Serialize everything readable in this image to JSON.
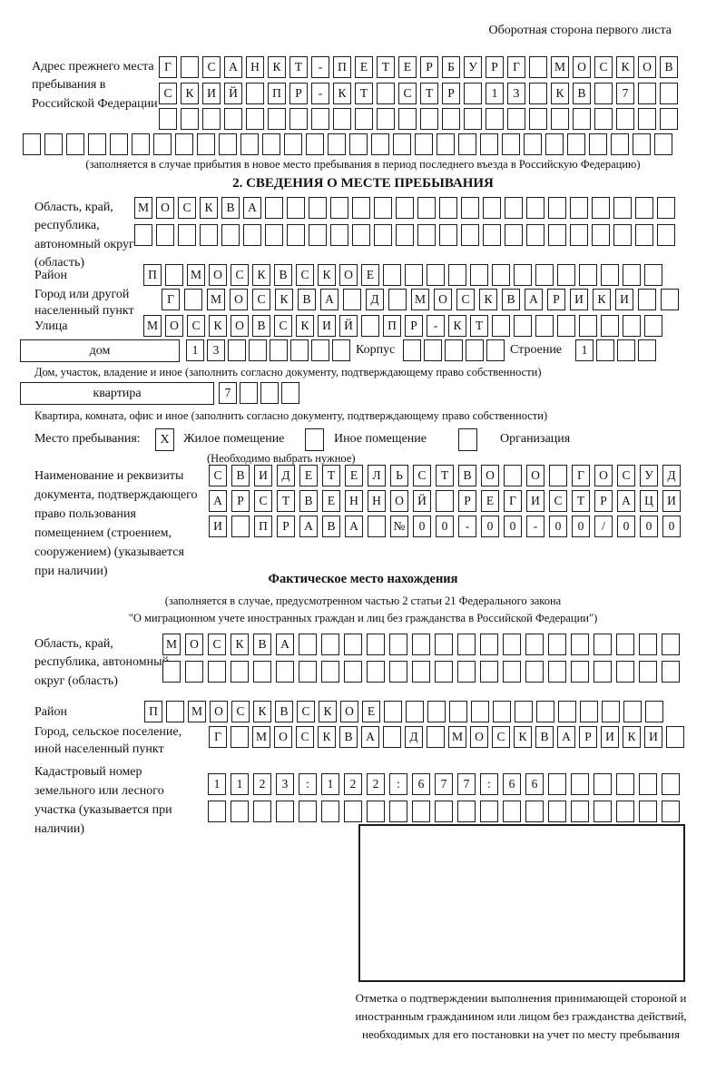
{
  "page": {
    "header_note": "Оборотная сторона первого листа",
    "section2_title": "2. СВЕДЕНИЯ О МЕСТЕ ПРЕБЫВАНИЯ"
  },
  "prev_address": {
    "label": "Адрес прежнего места пребывания в Российской Федерации",
    "row1": "Г САНКТ-ПЕТЕРБУРГ МОСКОВ",
    "row2": "СКИЙ ПР-КТ СТР 13 КВ 7  ",
    "row3": "                        ",
    "row4": "                              ",
    "note": "(заполняется в случае прибытия в новое место пребывания в период последнего въезда в Российскую Федерацию)"
  },
  "stay_place": {
    "region": {
      "label": "Область, край, республика, автономный округ (область)",
      "row1": "МОСКВА                   ",
      "row2": "                         "
    },
    "district": {
      "label": "Район",
      "cells": "П МОСКВСКОЕ             "
    },
    "city": {
      "label": "Город или другой населенный пункт",
      "cells": "Г МОСКВА Д МОСКВАРИКИ  "
    },
    "street": {
      "label": "Улица",
      "cells": "МОСКОВСКИЙ ПР-КТ        "
    },
    "house": {
      "box_label": "дом",
      "cells": "13      ",
      "korpus_label": "Корпус",
      "korpus_cells": "     ",
      "stroenie_label": "Строение",
      "stroenie_cells": "1   "
    },
    "house_note": "Дом, участок, владение и иное (заполнить согласно документу, подтверждающему право собственности)",
    "apartment": {
      "box_label": "квартира",
      "cells": "7   "
    },
    "apartment_note": "Квартира, комната, офис и иное (заполнить согласно документу, подтверждающему право собственности)",
    "type": {
      "label": "Место пребывания:",
      "options": [
        {
          "label": "Жилое помещение",
          "mark": "X"
        },
        {
          "label": "Иное помещение",
          "mark": ""
        },
        {
          "label": "Организация",
          "mark": ""
        }
      ],
      "note": "(Необходимо выбрать нужное)"
    },
    "document": {
      "label": "Наименование и реквизиты документа, подтверждающего право пользования помещением (строением, сооружением) (указывается при наличии)",
      "row1": "СВИДЕТЕЛЬСТВО О ГОСУД",
      "row2": "АРСТВЕННОЙ РЕГИСТРАЦИ",
      "row3": "И ПРАВА №00-00-00/000"
    }
  },
  "actual_location": {
    "title": "Фактическое место нахождения",
    "note_line1": "(заполняется в случае, предусмотренном частью 2 статьи 21 Федерального закона",
    "note_line2": "\"О миграционном учете иностранных граждан и лиц без гражданства в Российской Федерации\")",
    "region": {
      "label": "Область, край, республика, автономный округ (область)",
      "row1": "МОСКВА                 ",
      "row2": "                       "
    },
    "district": {
      "label": "Район",
      "cells": "П МОСКВСКОЕ             "
    },
    "city": {
      "label": "Город, сельское поселение, иной населенный пункт",
      "cells": "Г МОСКВА Д МОСКВАРИКИ "
    },
    "cadastral": {
      "label": "Кадастровый номер земельного или лесного участка (указывается при наличии)",
      "row1": "1123:122:677:66      ",
      "row2": "                     "
    },
    "stamp_note": "Отметка о подтверждении выполнения принимающей стороной и иностранным гражданином или лицом без гражданства действий, необходимых для его постановки на учет по месту пребывания"
  }
}
